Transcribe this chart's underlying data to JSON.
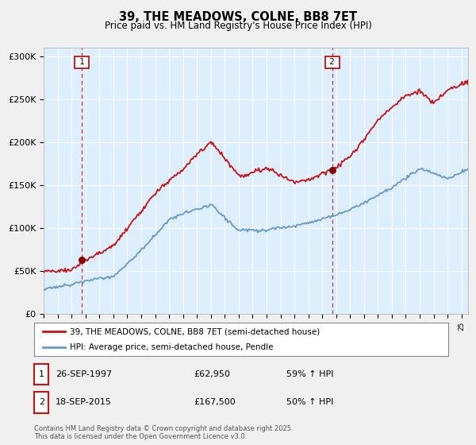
{
  "title": "39, THE MEADOWS, COLNE, BB8 7ET",
  "subtitle": "Price paid vs. HM Land Registry's House Price Index (HPI)",
  "legend_line1": "39, THE MEADOWS, COLNE, BB8 7ET (semi-detached house)",
  "legend_line2": "HPI: Average price, semi-detached house, Pendle",
  "annotation1_label": "1",
  "annotation1_date": "26-SEP-1997",
  "annotation1_price": 62950,
  "annotation1_hpi": "59% ↑ HPI",
  "annotation2_label": "2",
  "annotation2_date": "18-SEP-2015",
  "annotation2_price": 167500,
  "annotation2_hpi": "50% ↑ HPI",
  "footer": "Contains HM Land Registry data © Crown copyright and database right 2025.\nThis data is licensed under the Open Government Licence v3.0.",
  "price_color": "#cc1111",
  "hpi_color": "#6699cc",
  "annotation_color": "#cc1111",
  "background_color": "#f0f0f0",
  "plot_background": "#ddeeff",
  "ylim": [
    0,
    310000
  ],
  "yticks": [
    0,
    50000,
    100000,
    150000,
    200000,
    250000,
    300000
  ],
  "xlim_start": 1995.0,
  "xlim_end": 2025.5,
  "sale1_year": 1997.73,
  "sale1_price": 62950,
  "sale2_year": 2015.73,
  "sale2_price": 167500
}
